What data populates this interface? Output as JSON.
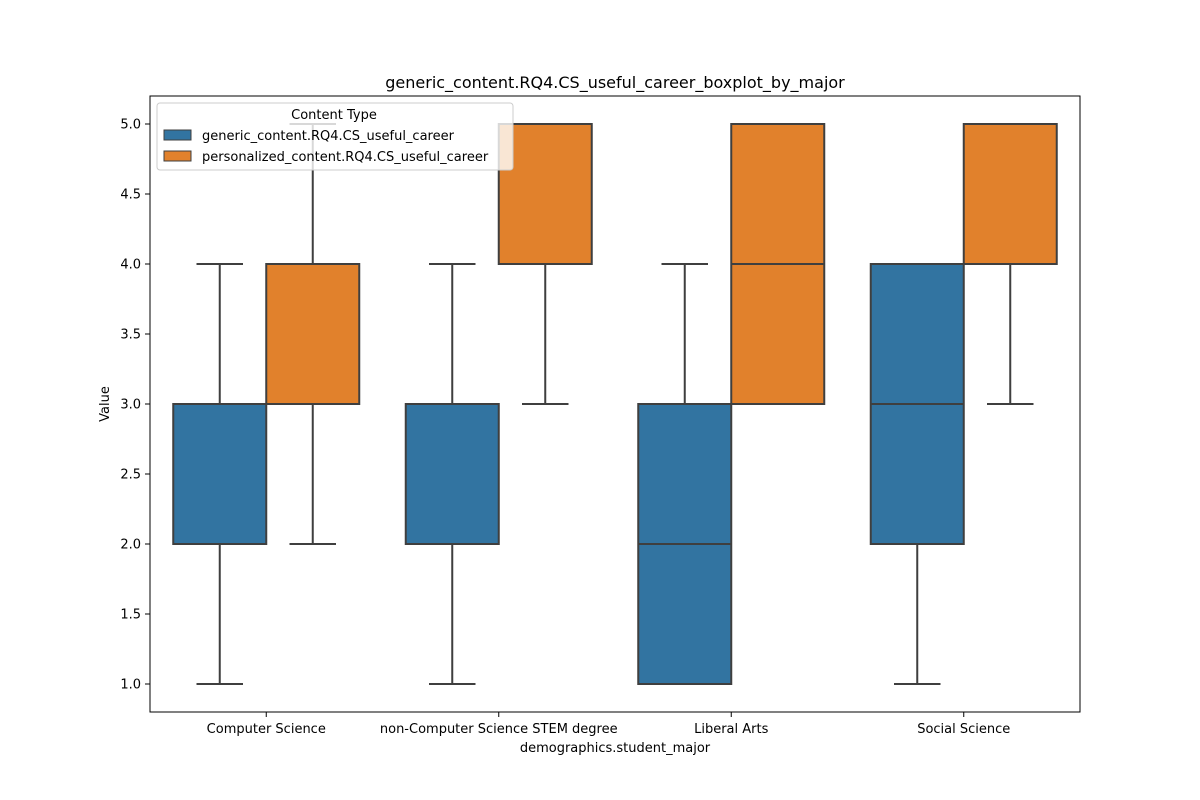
{
  "chart_data": {
    "type": "box",
    "title": "generic_content.RQ4.CS_useful_career_boxplot_by_major",
    "xlabel": "demographics.student_major",
    "ylabel": "Value",
    "ylim": [
      0.8,
      5.2
    ],
    "yticks": [
      "1.0",
      "1.5",
      "2.0",
      "2.5",
      "3.0",
      "3.5",
      "4.0",
      "4.5",
      "5.0"
    ],
    "categories": [
      "Computer Science",
      "non-Computer Science STEM degree",
      "Liberal Arts",
      "Social Science"
    ],
    "legend": {
      "title": "Content Type",
      "placement": "upper-left"
    },
    "grid": false,
    "series": [
      {
        "name": "generic_content.RQ4.CS_useful_career",
        "color": "#3274a1",
        "boxes": [
          {
            "whisker_low": 1,
            "q1": 2,
            "median": 3,
            "q3": 3,
            "whisker_high": 4
          },
          {
            "whisker_low": 1,
            "q1": 2,
            "median": 3,
            "q3": 3,
            "whisker_high": 4
          },
          {
            "whisker_low": 1,
            "q1": 1,
            "median": 2,
            "q3": 3,
            "whisker_high": 4
          },
          {
            "whisker_low": 1,
            "q1": 2,
            "median": 3,
            "q3": 4,
            "whisker_high": 4
          }
        ]
      },
      {
        "name": "personalized_content.RQ4.CS_useful_career",
        "color": "#e1812c",
        "boxes": [
          {
            "whisker_low": 2,
            "q1": 3,
            "median": 4,
            "q3": 4,
            "whisker_high": 5
          },
          {
            "whisker_low": 3,
            "q1": 4,
            "median": 5,
            "q3": 5,
            "whisker_high": 5
          },
          {
            "whisker_low": 3,
            "q1": 3,
            "median": 4,
            "q3": 5,
            "whisker_high": 5
          },
          {
            "whisker_low": 3,
            "q1": 4,
            "median": 5,
            "q3": 5,
            "whisker_high": 5
          }
        ]
      }
    ]
  }
}
